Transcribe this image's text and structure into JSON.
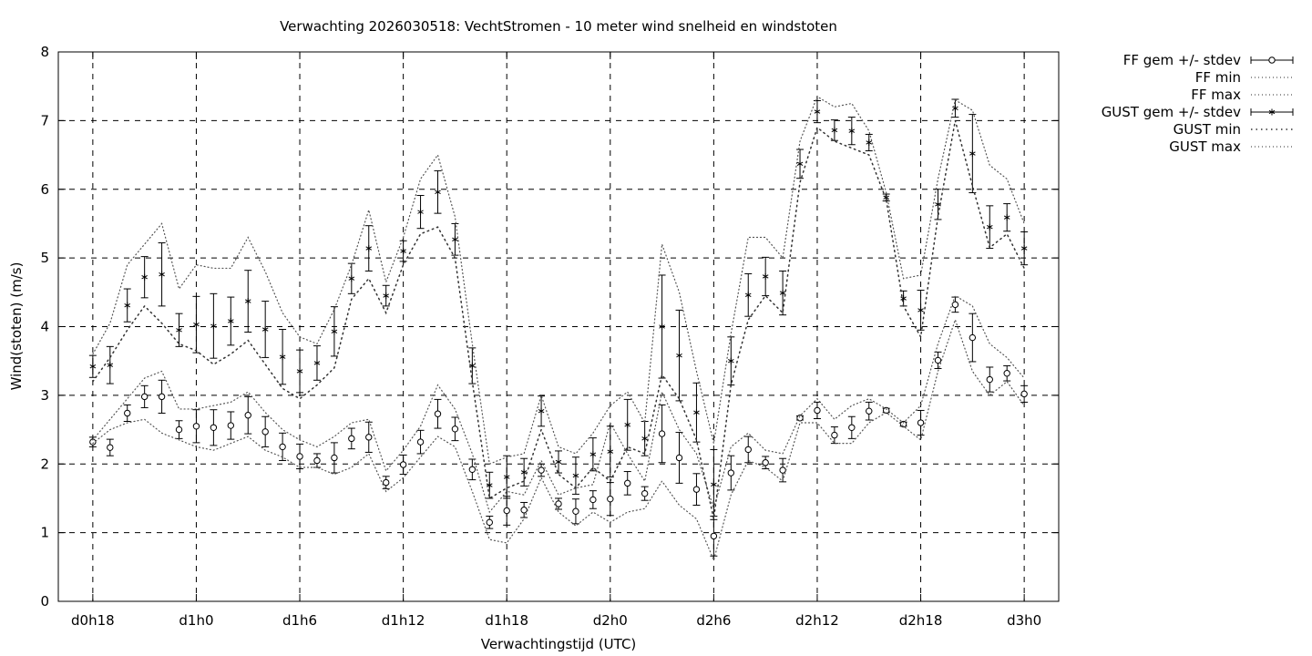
{
  "chart_data": {
    "type": "line",
    "title": "Verwachting 2026030518: VechtStromen - 10 meter wind snelheid en windstoten",
    "xlabel": "Verwachtingstijd (UTC)",
    "ylabel": "Wind(stoten) (m/s)",
    "ylim": [
      0,
      8
    ],
    "xlim_hours": [
      -2,
      56
    ],
    "yticks": [
      "0",
      "1",
      "2",
      "3",
      "4",
      "5",
      "6",
      "7",
      "8"
    ],
    "xticks": [
      {
        "h": 0,
        "label": "d0h18"
      },
      {
        "h": 6,
        "label": "d1h0"
      },
      {
        "h": 12,
        "label": "d1h6"
      },
      {
        "h": 18,
        "label": "d1h12"
      },
      {
        "h": 24,
        "label": "d1h18"
      },
      {
        "h": 30,
        "label": "d2h0"
      },
      {
        "h": 36,
        "label": "d2h6"
      },
      {
        "h": 42,
        "label": "d2h12"
      },
      {
        "h": 48,
        "label": "d2h18"
      },
      {
        "h": 54,
        "label": "d3h0"
      }
    ],
    "grid": true,
    "legend_position": "outside top-right",
    "series": [
      {
        "name": "FF gem +/- stdev",
        "kind": "errorbar",
        "marker": "circle",
        "points": [
          {
            "h": 0,
            "y": 2.32,
            "err": 0.07
          },
          {
            "h": 1,
            "y": 2.24,
            "err": 0.12
          },
          {
            "h": 2,
            "y": 2.74,
            "err": 0.12
          },
          {
            "h": 3,
            "y": 2.98,
            "err": 0.16
          },
          {
            "h": 4,
            "y": 2.98,
            "err": 0.24
          },
          {
            "h": 5,
            "y": 2.5,
            "err": 0.13
          },
          {
            "h": 6,
            "y": 2.55,
            "err": 0.24
          },
          {
            "h": 7,
            "y": 2.53,
            "err": 0.26
          },
          {
            "h": 8,
            "y": 2.56,
            "err": 0.2
          },
          {
            "h": 9,
            "y": 2.71,
            "err": 0.27
          },
          {
            "h": 10,
            "y": 2.47,
            "err": 0.22
          },
          {
            "h": 11,
            "y": 2.25,
            "err": 0.2
          },
          {
            "h": 12,
            "y": 2.11,
            "err": 0.18
          },
          {
            "h": 13,
            "y": 2.05,
            "err": 0.1
          },
          {
            "h": 14,
            "y": 2.09,
            "err": 0.22
          },
          {
            "h": 15,
            "y": 2.37,
            "err": 0.15
          },
          {
            "h": 16,
            "y": 2.39,
            "err": 0.22
          },
          {
            "h": 17,
            "y": 1.73,
            "err": 0.09
          },
          {
            "h": 18,
            "y": 1.99,
            "err": 0.14
          },
          {
            "h": 19,
            "y": 2.32,
            "err": 0.17
          },
          {
            "h": 20,
            "y": 2.73,
            "err": 0.21
          },
          {
            "h": 21,
            "y": 2.51,
            "err": 0.17
          },
          {
            "h": 22,
            "y": 1.92,
            "err": 0.15
          },
          {
            "h": 23,
            "y": 1.15,
            "err": 0.09
          },
          {
            "h": 24,
            "y": 1.32,
            "err": 0.21
          },
          {
            "h": 25,
            "y": 1.33,
            "err": 0.11
          },
          {
            "h": 26,
            "y": 1.91,
            "err": 0.09
          },
          {
            "h": 27,
            "y": 1.42,
            "err": 0.08
          },
          {
            "h": 28,
            "y": 1.31,
            "err": 0.18
          },
          {
            "h": 29,
            "y": 1.48,
            "err": 0.13
          },
          {
            "h": 30,
            "y": 1.49,
            "err": 0.24
          },
          {
            "h": 31,
            "y": 1.72,
            "err": 0.17
          },
          {
            "h": 32,
            "y": 1.57,
            "err": 0.1
          },
          {
            "h": 33,
            "y": 2.44,
            "err": 0.42
          },
          {
            "h": 34,
            "y": 2.09,
            "err": 0.37
          },
          {
            "h": 35,
            "y": 1.63,
            "err": 0.23
          },
          {
            "h": 36,
            "y": 0.95,
            "err": 0.29
          },
          {
            "h": 37,
            "y": 1.87,
            "err": 0.25
          },
          {
            "h": 38,
            "y": 2.21,
            "err": 0.19
          },
          {
            "h": 39,
            "y": 2.02,
            "err": 0.09
          },
          {
            "h": 40,
            "y": 1.91,
            "err": 0.17
          },
          {
            "h": 41,
            "y": 2.67,
            "err": 0.03
          },
          {
            "h": 42,
            "y": 2.78,
            "err": 0.12
          },
          {
            "h": 43,
            "y": 2.42,
            "err": 0.12
          },
          {
            "h": 44,
            "y": 2.53,
            "err": 0.16
          },
          {
            "h": 45,
            "y": 2.77,
            "err": 0.13
          },
          {
            "h": 46,
            "y": 2.78,
            "err": 0.03
          },
          {
            "h": 47,
            "y": 2.58,
            "err": 0.03
          },
          {
            "h": 48,
            "y": 2.6,
            "err": 0.18
          },
          {
            "h": 49,
            "y": 3.51,
            "err": 0.12
          },
          {
            "h": 50,
            "y": 4.32,
            "err": 0.11
          },
          {
            "h": 51,
            "y": 3.84,
            "err": 0.35
          },
          {
            "h": 52,
            "y": 3.23,
            "err": 0.18
          },
          {
            "h": 53,
            "y": 3.32,
            "err": 0.11
          },
          {
            "h": 54,
            "y": 3.02,
            "err": 0.12
          }
        ]
      },
      {
        "name": "FF min",
        "kind": "dotted",
        "values": [
          2.3,
          2.5,
          2.6,
          2.65,
          2.45,
          2.35,
          2.25,
          2.2,
          2.3,
          2.4,
          2.2,
          2.1,
          1.95,
          1.95,
          1.85,
          1.95,
          2.15,
          1.6,
          1.8,
          2.1,
          2.4,
          2.25,
          1.6,
          0.9,
          0.85,
          1.2,
          1.8,
          1.3,
          1.1,
          1.3,
          1.15,
          1.3,
          1.35,
          1.75,
          1.4,
          1.2,
          0.6,
          1.55,
          2.05,
          1.95,
          1.75,
          2.6,
          2.6,
          2.3,
          2.3,
          2.6,
          2.75,
          2.55,
          2.35,
          3.35,
          4.1,
          3.35,
          3.0,
          3.2,
          2.85
        ]
      },
      {
        "name": "FF max",
        "kind": "dotted",
        "values": [
          2.35,
          2.65,
          2.95,
          3.25,
          3.35,
          2.8,
          2.8,
          2.85,
          2.9,
          3.05,
          2.75,
          2.5,
          2.35,
          2.25,
          2.4,
          2.6,
          2.65,
          1.9,
          2.2,
          2.55,
          3.15,
          2.8,
          2.15,
          1.3,
          1.6,
          1.55,
          2.05,
          1.55,
          1.65,
          1.7,
          2.6,
          2.15,
          1.75,
          3.05,
          2.5,
          2.15,
          1.35,
          2.25,
          2.45,
          2.2,
          2.15,
          2.7,
          2.95,
          2.65,
          2.85,
          2.95,
          2.8,
          2.6,
          2.85,
          3.75,
          4.45,
          4.3,
          3.75,
          3.55,
          3.25
        ]
      },
      {
        "name": "GUST gem +/- stdev",
        "kind": "errorbar",
        "marker": "star",
        "points": [
          {
            "h": 0,
            "y": 3.42,
            "err": 0.16
          },
          {
            "h": 1,
            "y": 3.44,
            "err": 0.27
          },
          {
            "h": 2,
            "y": 4.31,
            "err": 0.24
          },
          {
            "h": 3,
            "y": 4.72,
            "err": 0.3
          },
          {
            "h": 4,
            "y": 4.76,
            "err": 0.46
          },
          {
            "h": 5,
            "y": 3.95,
            "err": 0.24
          },
          {
            "h": 6,
            "y": 4.03,
            "err": 0.41
          },
          {
            "h": 7,
            "y": 4.01,
            "err": 0.47
          },
          {
            "h": 8,
            "y": 4.08,
            "err": 0.35
          },
          {
            "h": 9,
            "y": 4.37,
            "err": 0.45
          },
          {
            "h": 10,
            "y": 3.96,
            "err": 0.41
          },
          {
            "h": 11,
            "y": 3.56,
            "err": 0.4
          },
          {
            "h": 12,
            "y": 3.35,
            "err": 0.31
          },
          {
            "h": 13,
            "y": 3.47,
            "err": 0.25
          },
          {
            "h": 14,
            "y": 3.93,
            "err": 0.36
          },
          {
            "h": 15,
            "y": 4.7,
            "err": 0.22
          },
          {
            "h": 16,
            "y": 5.14,
            "err": 0.33
          },
          {
            "h": 17,
            "y": 4.45,
            "err": 0.15
          },
          {
            "h": 18,
            "y": 5.1,
            "err": 0.15
          },
          {
            "h": 19,
            "y": 5.67,
            "err": 0.24
          },
          {
            "h": 20,
            "y": 5.96,
            "err": 0.31
          },
          {
            "h": 21,
            "y": 5.27,
            "err": 0.23
          },
          {
            "h": 22,
            "y": 3.43,
            "err": 0.26
          },
          {
            "h": 23,
            "y": 1.69,
            "err": 0.19
          },
          {
            "h": 24,
            "y": 1.81,
            "err": 0.31
          },
          {
            "h": 25,
            "y": 1.88,
            "err": 0.2
          },
          {
            "h": 26,
            "y": 2.77,
            "err": 0.22
          },
          {
            "h": 27,
            "y": 2.03,
            "err": 0.16
          },
          {
            "h": 28,
            "y": 1.83,
            "err": 0.27
          },
          {
            "h": 29,
            "y": 2.14,
            "err": 0.24
          },
          {
            "h": 30,
            "y": 2.18,
            "err": 0.37
          },
          {
            "h": 31,
            "y": 2.57,
            "err": 0.37
          },
          {
            "h": 32,
            "y": 2.37,
            "err": 0.25
          },
          {
            "h": 33,
            "y": 4.0,
            "err": 0.75
          },
          {
            "h": 34,
            "y": 3.58,
            "err": 0.66
          },
          {
            "h": 35,
            "y": 2.75,
            "err": 0.43
          },
          {
            "h": 36,
            "y": 1.7,
            "err": 0.51
          },
          {
            "h": 37,
            "y": 3.5,
            "err": 0.35
          },
          {
            "h": 38,
            "y": 4.46,
            "err": 0.31
          },
          {
            "h": 39,
            "y": 4.73,
            "err": 0.28
          },
          {
            "h": 40,
            "y": 4.49,
            "err": 0.32
          },
          {
            "h": 41,
            "y": 6.37,
            "err": 0.21
          },
          {
            "h": 42,
            "y": 7.13,
            "err": 0.16
          },
          {
            "h": 43,
            "y": 6.86,
            "err": 0.15
          },
          {
            "h": 44,
            "y": 6.85,
            "err": 0.2
          },
          {
            "h": 45,
            "y": 6.68,
            "err": 0.12
          },
          {
            "h": 46,
            "y": 5.88,
            "err": 0.05
          },
          {
            "h": 47,
            "y": 4.41,
            "err": 0.11
          },
          {
            "h": 48,
            "y": 4.24,
            "err": 0.29
          },
          {
            "h": 49,
            "y": 5.78,
            "err": 0.22
          },
          {
            "h": 50,
            "y": 7.18,
            "err": 0.13
          },
          {
            "h": 51,
            "y": 6.52,
            "err": 0.57
          },
          {
            "h": 52,
            "y": 5.45,
            "err": 0.31
          },
          {
            "h": 53,
            "y": 5.59,
            "err": 0.2
          },
          {
            "h": 54,
            "y": 5.14,
            "err": 0.24
          }
        ]
      },
      {
        "name": "GUST min",
        "kind": "dotted",
        "values": [
          3.2,
          3.55,
          3.95,
          4.3,
          4.05,
          3.75,
          3.65,
          3.45,
          3.6,
          3.8,
          3.45,
          3.1,
          2.95,
          3.15,
          3.4,
          4.4,
          4.7,
          4.2,
          4.9,
          5.35,
          5.45,
          5.0,
          3.2,
          1.5,
          1.65,
          1.75,
          2.5,
          1.85,
          1.65,
          1.95,
          1.75,
          2.25,
          2.15,
          3.3,
          2.95,
          2.35,
          1.2,
          3.15,
          4.1,
          4.45,
          4.2,
          6.1,
          6.9,
          6.7,
          6.6,
          6.5,
          5.85,
          4.3,
          3.85,
          5.6,
          7.0,
          6.05,
          5.15,
          5.35,
          4.85
        ]
      },
      {
        "name": "GUST max",
        "kind": "dotted",
        "values": [
          3.6,
          4.05,
          4.9,
          5.2,
          5.5,
          4.55,
          4.9,
          4.85,
          4.85,
          5.3,
          4.8,
          4.2,
          3.85,
          3.75,
          4.25,
          4.9,
          5.7,
          4.65,
          5.3,
          6.15,
          6.5,
          5.6,
          3.75,
          2.0,
          2.1,
          2.15,
          3.0,
          2.25,
          2.15,
          2.45,
          2.85,
          3.05,
          2.6,
          5.2,
          4.5,
          3.35,
          2.3,
          3.9,
          5.3,
          5.3,
          5.0,
          6.7,
          7.35,
          7.2,
          7.25,
          6.85,
          5.95,
          4.7,
          4.75,
          6.15,
          7.3,
          7.15,
          6.35,
          6.15,
          5.5
        ]
      }
    ]
  }
}
